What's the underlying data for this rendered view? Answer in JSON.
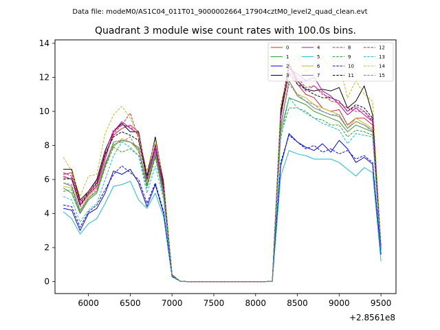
{
  "figure": {
    "suptitle": "Data file: modeM0/AS1C04_011T01_9000002664_17904cztM0_level2_quad_clean.evt"
  },
  "chart_data": {
    "type": "line",
    "title": "Quadrant 3 module wise count rates with 100.0s bins.",
    "xlabel": "",
    "ylabel": "",
    "x_offset_label": "+2.8561e8",
    "xlim": [
      5600,
      9680
    ],
    "ylim": [
      -0.7,
      14.2
    ],
    "xticks": [
      6000,
      6500,
      7000,
      7500,
      8000,
      8500,
      9000,
      9500
    ],
    "yticks": [
      0,
      2,
      4,
      6,
      8,
      10,
      12,
      14
    ],
    "grid": false,
    "legend_placement": "top-right",
    "x": [
      5700,
      5800,
      5900,
      6000,
      6100,
      6200,
      6300,
      6400,
      6500,
      6600,
      6700,
      6800,
      6900,
      7000,
      7100,
      7200,
      7300,
      7400,
      7500,
      7600,
      7700,
      7800,
      7900,
      8000,
      8100,
      8200,
      8300,
      8400,
      8500,
      8600,
      8700,
      8800,
      8900,
      9000,
      9100,
      9200,
      9300,
      9400,
      9500
    ],
    "series": [
      {
        "name": "0",
        "color": "#d62728",
        "dash": "solid",
        "values": [
          6.3,
          6.4,
          4.7,
          5.2,
          5.8,
          7.4,
          8.6,
          9.0,
          9.2,
          8.8,
          6.0,
          8.0,
          5.6,
          0.4,
          0.02,
          0,
          0,
          0,
          0,
          0,
          0,
          0,
          0,
          0,
          0,
          0.02,
          9.8,
          12.7,
          11.6,
          11.0,
          10.8,
          10.2,
          10.0,
          10.1,
          9.2,
          9.6,
          9.6,
          9.2,
          2.0
        ]
      },
      {
        "name": "1",
        "color": "#2ca02c",
        "dash": "solid",
        "values": [
          5.5,
          5.2,
          4.0,
          4.8,
          5.2,
          6.8,
          8.0,
          8.3,
          8.2,
          7.8,
          5.6,
          7.4,
          5.0,
          0.35,
          0.02,
          0,
          0,
          0,
          0,
          0,
          0,
          0,
          0,
          0,
          0,
          0.02,
          8.8,
          10.8,
          10.6,
          10.4,
          10.0,
          9.8,
          9.6,
          9.4,
          8.8,
          9.2,
          9.0,
          8.8,
          1.9
        ]
      },
      {
        "name": "2",
        "color": "#0000ff",
        "dash": "solid",
        "values": [
          4.3,
          4.2,
          3.0,
          4.0,
          4.3,
          5.2,
          6.5,
          6.3,
          6.6,
          5.8,
          4.4,
          5.7,
          4.0,
          0.3,
          0.02,
          0,
          0,
          0,
          0,
          0,
          0,
          0,
          0,
          0,
          0,
          0.02,
          6.8,
          8.7,
          8.2,
          7.9,
          7.7,
          8.1,
          7.6,
          8.3,
          7.8,
          7.0,
          7.3,
          6.9,
          1.6
        ]
      },
      {
        "name": "3",
        "color": "#000000",
        "dash": "solid",
        "values": [
          6.6,
          6.6,
          4.8,
          5.3,
          6.0,
          7.7,
          8.8,
          9.3,
          8.8,
          8.8,
          6.2,
          8.5,
          5.8,
          0.4,
          0.02,
          0,
          0,
          0,
          0,
          0,
          0,
          0,
          0,
          0,
          0,
          0.02,
          10.0,
          12.8,
          11.8,
          11.3,
          11.2,
          11.3,
          11.2,
          11.4,
          10.2,
          10.6,
          11.5,
          9.8,
          2.1
        ]
      },
      {
        "name": "4",
        "color": "#bf00bf",
        "dash": "solid",
        "values": [
          6.2,
          6.0,
          4.5,
          5.1,
          5.6,
          7.2,
          8.8,
          9.4,
          9.0,
          8.7,
          5.9,
          7.8,
          5.4,
          0.38,
          0.02,
          0,
          0,
          0,
          0,
          0,
          0,
          0,
          0,
          0,
          0,
          0.02,
          9.6,
          12.5,
          12.2,
          11.8,
          12.0,
          11.2,
          10.9,
          10.4,
          9.8,
          10.2,
          9.8,
          9.4,
          2.0
        ]
      },
      {
        "name": "5",
        "color": "#17becf",
        "dash": "solid",
        "values": [
          4.1,
          3.7,
          2.8,
          3.4,
          3.7,
          4.6,
          5.6,
          5.7,
          5.9,
          4.8,
          4.3,
          5.2,
          3.8,
          0.28,
          0.02,
          0,
          0,
          0,
          0,
          0,
          0,
          0,
          0,
          0,
          0,
          0.02,
          6.2,
          7.7,
          7.5,
          7.4,
          7.2,
          7.2,
          7.2,
          7.0,
          6.6,
          6.2,
          6.7,
          6.4,
          1.2
        ]
      },
      {
        "name": "6",
        "color": "#bcbd22",
        "dash": "solid",
        "values": [
          5.6,
          5.5,
          4.2,
          5.0,
          5.5,
          7.0,
          7.9,
          8.4,
          8.2,
          7.7,
          5.9,
          7.6,
          5.2,
          0.36,
          0.02,
          0,
          0,
          0,
          0,
          0,
          0,
          0,
          0,
          0,
          0,
          0.02,
          9.2,
          11.8,
          11.0,
          10.8,
          10.4,
          10.2,
          10.0,
          9.8,
          9.0,
          9.6,
          9.3,
          9.0,
          1.9
        ]
      },
      {
        "name": "7",
        "color": "#7f7f7f",
        "dash": "solid",
        "values": [
          5.8,
          5.6,
          4.1,
          4.9,
          5.3,
          6.9,
          8.2,
          8.3,
          8.2,
          7.9,
          5.7,
          7.6,
          5.2,
          0.36,
          0.02,
          0,
          0,
          0,
          0,
          0,
          0,
          0,
          0,
          0,
          0,
          0.02,
          9.0,
          11.8,
          10.9,
          10.6,
          10.2,
          10.0,
          9.8,
          9.7,
          9.0,
          9.4,
          9.2,
          8.9,
          1.9
        ]
      },
      {
        "name": "8",
        "color": "#d62728",
        "dash": "dashed",
        "values": [
          6.1,
          6.0,
          4.4,
          5.1,
          5.7,
          7.4,
          8.7,
          9.2,
          9.9,
          8.4,
          6.0,
          8.1,
          5.6,
          0.4,
          0.02,
          0,
          0,
          0,
          0,
          0,
          0,
          0,
          0,
          0,
          0,
          0.02,
          9.7,
          12.7,
          12.0,
          11.4,
          11.5,
          11.1,
          10.6,
          10.5,
          10.2,
          10.0,
          10.0,
          9.4,
          2.0
        ]
      },
      {
        "name": "9",
        "color": "#2ca02c",
        "dash": "dashed",
        "values": [
          5.3,
          5.4,
          4.0,
          4.8,
          5.2,
          6.7,
          7.9,
          7.6,
          7.8,
          7.4,
          5.5,
          7.3,
          5.0,
          0.35,
          0.02,
          0,
          0,
          0,
          0,
          0,
          0,
          0,
          0,
          0,
          0,
          0.02,
          8.6,
          10.2,
          10.2,
          10.0,
          9.6,
          9.5,
          9.2,
          9.2,
          8.5,
          8.9,
          8.8,
          8.6,
          1.9
        ]
      },
      {
        "name": "10",
        "color": "#0000ff",
        "dash": "dashed",
        "values": [
          4.5,
          4.4,
          3.2,
          4.1,
          4.5,
          5.4,
          6.3,
          6.8,
          6.4,
          6.0,
          4.6,
          5.8,
          4.1,
          0.3,
          0.02,
          0,
          0,
          0,
          0,
          0,
          0,
          0,
          0,
          0,
          0,
          0.02,
          7.0,
          8.6,
          8.2,
          7.8,
          8.0,
          7.6,
          7.8,
          7.5,
          7.7,
          7.2,
          7.4,
          7.0,
          1.6
        ]
      },
      {
        "name": "11",
        "color": "#000000",
        "dash": "dashed",
        "values": [
          6.0,
          6.1,
          4.5,
          5.2,
          5.8,
          7.5,
          8.5,
          8.8,
          8.6,
          8.3,
          6.0,
          8.0,
          5.5,
          0.4,
          0.02,
          0,
          0,
          0,
          0,
          0,
          0,
          0,
          0,
          0,
          0,
          0.02,
          9.8,
          12.2,
          11.6,
          11.3,
          11.0,
          10.8,
          10.8,
          10.6,
          10.0,
          10.4,
          10.2,
          9.6,
          2.0
        ]
      },
      {
        "name": "12",
        "color": "#bf00bf",
        "dash": "dashed",
        "values": [
          6.4,
          6.2,
          4.6,
          5.3,
          5.9,
          7.6,
          8.9,
          9.2,
          9.1,
          8.6,
          6.0,
          8.0,
          5.6,
          0.4,
          0.02,
          0,
          0,
          0,
          0,
          0,
          0,
          0,
          0,
          0,
          0,
          0.02,
          9.7,
          12.3,
          11.8,
          11.2,
          11.5,
          11.0,
          10.8,
          10.6,
          10.0,
          10.3,
          10.0,
          9.5,
          2.0
        ]
      },
      {
        "name": "13",
        "color": "#17becf",
        "dash": "dashed",
        "values": [
          5.0,
          4.8,
          3.5,
          4.2,
          4.6,
          6.0,
          7.4,
          8.2,
          7.9,
          7.4,
          5.2,
          6.8,
          4.8,
          0.33,
          0.02,
          0,
          0,
          0,
          0,
          0,
          0,
          0,
          0,
          0,
          0,
          0.02,
          8.4,
          10.8,
          10.2,
          9.9,
          9.6,
          9.3,
          9.1,
          8.9,
          8.1,
          8.7,
          8.6,
          8.5,
          1.8
        ]
      },
      {
        "name": "14",
        "color": "#bcbd22",
        "dash": "dashed",
        "values": [
          7.3,
          6.5,
          5.0,
          6.2,
          6.3,
          8.7,
          9.8,
          10.3,
          9.6,
          8.6,
          6.5,
          8.3,
          6.0,
          0.45,
          0.02,
          0,
          0,
          0,
          0,
          0,
          0,
          0,
          0,
          0,
          0,
          0.02,
          10.4,
          12.4,
          13.4,
          12.3,
          12.8,
          13.2,
          12.4,
          12.8,
          10.8,
          11.8,
          11.0,
          10.6,
          2.2
        ]
      },
      {
        "name": "15",
        "color": "#7f7f7f",
        "dash": "dashed",
        "values": [
          5.8,
          5.7,
          4.2,
          4.9,
          5.4,
          6.9,
          8.1,
          8.2,
          8.5,
          7.6,
          5.7,
          7.5,
          5.2,
          0.36,
          0.02,
          0,
          0,
          0,
          0,
          0,
          0,
          0,
          0,
          0,
          0,
          0.02,
          9.2,
          11.6,
          11.0,
          10.6,
          10.4,
          10.0,
          9.8,
          9.8,
          9.0,
          9.4,
          9.2,
          8.8,
          1.9
        ]
      }
    ]
  }
}
